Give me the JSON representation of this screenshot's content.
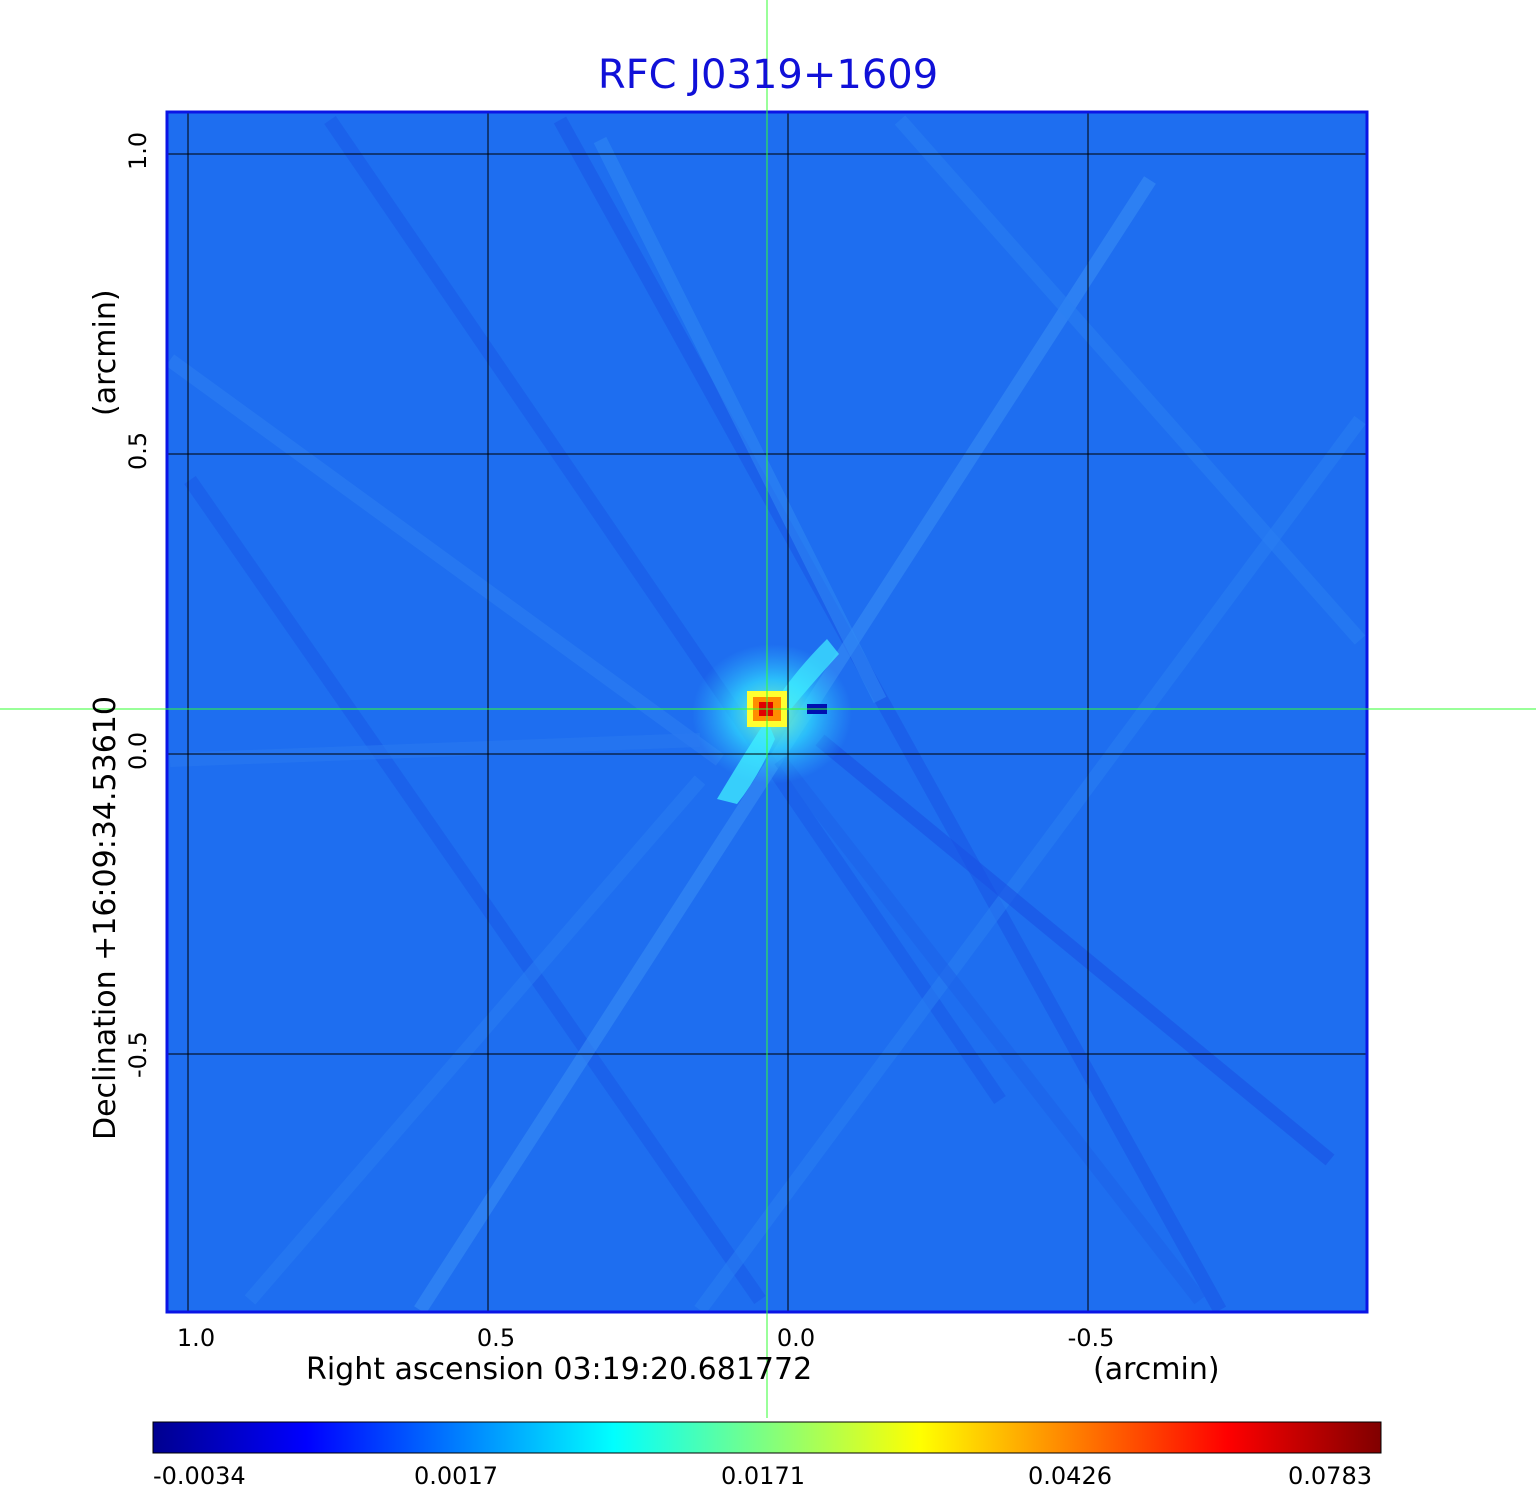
{
  "chart_data": {
    "type": "heatmap",
    "title": "RFC J0319+1609",
    "xlabel": "Right ascension  03:19:20.681772",
    "xlabel_unit": "(arcmin)",
    "ylabel": "Declination  +16:09:34.53610",
    "ylabel_unit": "(arcmin)",
    "x_ticks": [
      "1.0",
      "0.5",
      "0.0",
      "-0.5"
    ],
    "x_tick_values": [
      1.0,
      0.5,
      0.0,
      -0.5
    ],
    "y_ticks": [
      "1.0",
      "0.5",
      "0.0",
      "-0.5"
    ],
    "y_tick_values": [
      1.0,
      0.5,
      0.0,
      -0.5
    ],
    "xlim": [
      1.035,
      -0.965
    ],
    "ylim": [
      -0.93,
      1.07
    ],
    "x_inverted": true,
    "grid": true,
    "crosshair": {
      "x": 0.035,
      "y": 0.075
    },
    "peak": {
      "x": 0.035,
      "y": 0.075,
      "value": 0.0783
    },
    "colorbar": {
      "ticks": [
        "-0.0034",
        "0.0017",
        "0.0171",
        "0.0426",
        "0.0783"
      ],
      "colormap": "jet",
      "placement": "bottom"
    }
  },
  "colors": {
    "title": "#1010d8",
    "frame": "#0a14e6",
    "grid": "#000000",
    "crosshair": "#33ff33",
    "background_field": "#1e6ef0"
  }
}
